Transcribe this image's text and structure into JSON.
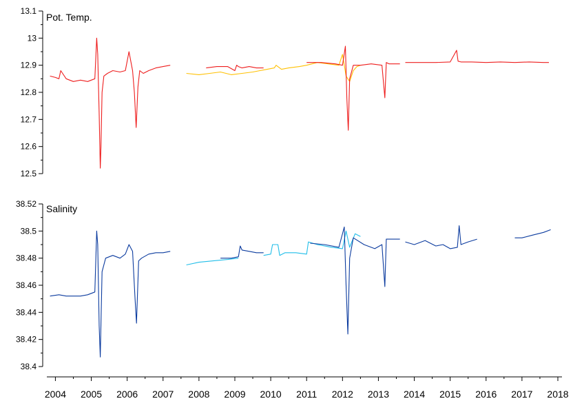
{
  "chart_data": [
    {
      "type": "line",
      "title": "Pot. Temp.",
      "xlabel": "",
      "ylabel": "",
      "xlim": [
        2003.8,
        2018.0
      ],
      "ylim": [
        12.5,
        13.1
      ],
      "yticks": [
        "12.5",
        "12.6",
        "12.7",
        "12.8",
        "12.9",
        "13",
        "13.1"
      ],
      "xticks": [
        "2004",
        "2005",
        "2006",
        "2007",
        "2008",
        "2009",
        "2010",
        "2011",
        "2012",
        "2013",
        "2014",
        "2015",
        "2016",
        "2017",
        "2018"
      ],
      "grid": false,
      "legend": "none",
      "series": [
        {
          "color": "#ee1c1c",
          "x": [
            2003.85,
            2004.0,
            2004.1,
            2004.15,
            2004.3,
            2004.5,
            2004.7,
            2004.9,
            2005.1,
            2005.15,
            2005.18,
            2005.22,
            2005.25,
            2005.27,
            2005.3,
            2005.35,
            2005.45,
            2005.6,
            2005.8,
            2005.95,
            2006.05,
            2006.15,
            2006.2,
            2006.25,
            2006.3,
            2006.35,
            2006.45,
            2006.6,
            2006.8,
            2007.0,
            2007.2
          ],
          "y": [
            12.86,
            12.855,
            12.85,
            12.88,
            12.85,
            12.84,
            12.845,
            12.84,
            12.85,
            13.0,
            12.94,
            12.72,
            12.52,
            12.6,
            12.8,
            12.86,
            12.87,
            12.88,
            12.875,
            12.88,
            12.95,
            12.88,
            12.8,
            12.67,
            12.82,
            12.88,
            12.87,
            12.88,
            12.89,
            12.895,
            12.9
          ]
        },
        {
          "color": "#ee1c1c",
          "x": [
            2008.2,
            2008.5,
            2008.8,
            2009.0,
            2009.05,
            2009.1,
            2009.2,
            2009.4,
            2009.6,
            2009.8
          ],
          "y": [
            12.89,
            12.895,
            12.895,
            12.88,
            12.9,
            12.895,
            12.89,
            12.895,
            12.89,
            12.89
          ]
        },
        {
          "color": "#ffc000",
          "x": [
            2007.65,
            2008.0,
            2008.3,
            2008.6,
            2008.9,
            2009.2,
            2009.5,
            2009.7,
            2009.9,
            2010.1,
            2010.15,
            2010.3,
            2010.5,
            2010.8,
            2011.0,
            2011.3,
            2011.6,
            2011.9,
            2012.0,
            2012.1,
            2012.2,
            2012.3,
            2012.4,
            2012.5
          ],
          "y": [
            12.87,
            12.865,
            12.87,
            12.875,
            12.865,
            12.87,
            12.875,
            12.88,
            12.885,
            12.89,
            12.9,
            12.885,
            12.89,
            12.895,
            12.9,
            12.91,
            12.905,
            12.9,
            12.94,
            12.86,
            12.84,
            12.88,
            12.895,
            12.9
          ]
        },
        {
          "color": "#ee1c1c",
          "x": [
            2011.0,
            2011.4,
            2011.8,
            2012.0,
            2012.08,
            2012.12,
            2012.16,
            2012.2,
            2012.3,
            2012.5,
            2012.8,
            2013.1,
            2013.18,
            2013.22,
            2013.3,
            2013.6
          ],
          "y": [
            12.91,
            12.91,
            12.905,
            12.9,
            12.97,
            12.78,
            12.66,
            12.85,
            12.9,
            12.9,
            12.905,
            12.9,
            12.78,
            12.91,
            12.905,
            12.905
          ]
        },
        {
          "color": "#ee1c1c",
          "x": [
            2013.75,
            2014.2,
            2014.6,
            2015.0,
            2015.18,
            2015.22,
            2015.3,
            2015.6,
            2016.0,
            2016.4,
            2016.8,
            2017.2,
            2017.6,
            2017.75
          ],
          "y": [
            12.91,
            12.91,
            12.91,
            12.912,
            12.955,
            12.915,
            12.912,
            12.912,
            12.91,
            12.912,
            12.91,
            12.912,
            12.91,
            12.91
          ]
        }
      ]
    },
    {
      "type": "line",
      "title": "Salinity",
      "xlabel": "",
      "ylabel": "",
      "xlim": [
        2003.8,
        2018.0
      ],
      "ylim": [
        38.4,
        38.52
      ],
      "yticks": [
        "38.4",
        "38.42",
        "38.44",
        "38.46",
        "38.48",
        "38.5",
        "38.52"
      ],
      "xticks": [
        "2004",
        "2005",
        "2006",
        "2007",
        "2008",
        "2009",
        "2010",
        "2011",
        "2012",
        "2013",
        "2014",
        "2015",
        "2016",
        "2017",
        "2018"
      ],
      "grid": false,
      "legend": "none",
      "series": [
        {
          "color": "#0a3a9e",
          "x": [
            2003.85,
            2004.1,
            2004.3,
            2004.5,
            2004.7,
            2004.9,
            2005.1,
            2005.15,
            2005.18,
            2005.22,
            2005.25,
            2005.3,
            2005.4,
            2005.6,
            2005.8,
            2005.95,
            2006.05,
            2006.15,
            2006.22,
            2006.26,
            2006.32,
            2006.4,
            2006.6,
            2006.8,
            2007.0,
            2007.2
          ],
          "y": [
            38.452,
            38.453,
            38.452,
            38.452,
            38.452,
            38.453,
            38.455,
            38.5,
            38.49,
            38.43,
            38.407,
            38.47,
            38.48,
            38.482,
            38.48,
            38.483,
            38.49,
            38.485,
            38.45,
            38.432,
            38.478,
            38.48,
            38.483,
            38.484,
            38.484,
            38.485
          ]
        },
        {
          "color": "#1fbde8",
          "x": [
            2007.65,
            2008.0,
            2008.4,
            2008.8,
            2009.1
          ],
          "y": [
            38.475,
            38.477,
            38.478,
            38.479,
            38.48
          ]
        },
        {
          "color": "#0a3a9e",
          "x": [
            2008.6,
            2008.9,
            2009.1,
            2009.15,
            2009.2,
            2009.4,
            2009.6,
            2009.8
          ],
          "y": [
            38.48,
            38.48,
            38.481,
            38.489,
            38.486,
            38.485,
            38.484,
            38.484
          ]
        },
        {
          "color": "#1fbde8",
          "x": [
            2009.8,
            2010.0,
            2010.05,
            2010.2,
            2010.25,
            2010.4,
            2010.7,
            2011.0,
            2011.05,
            2011.3,
            2011.7,
            2012.0,
            2012.1,
            2012.2,
            2012.35,
            2012.5
          ],
          "y": [
            38.482,
            38.483,
            38.49,
            38.49,
            38.482,
            38.484,
            38.484,
            38.483,
            38.492,
            38.49,
            38.488,
            38.487,
            38.5,
            38.488,
            38.498,
            38.496
          ]
        },
        {
          "color": "#0a3a9e",
          "x": [
            2011.1,
            2011.5,
            2011.9,
            2012.05,
            2012.1,
            2012.15,
            2012.2,
            2012.3,
            2012.6,
            2012.9,
            2013.1,
            2013.18,
            2013.22,
            2013.3,
            2013.6
          ],
          "y": [
            38.491,
            38.49,
            38.488,
            38.503,
            38.46,
            38.424,
            38.48,
            38.495,
            38.49,
            38.487,
            38.49,
            38.459,
            38.494,
            38.494,
            38.494
          ]
        },
        {
          "color": "#0a3a9e",
          "x": [
            2013.75,
            2014.0,
            2014.3,
            2014.6,
            2014.8,
            2015.0,
            2015.2,
            2015.25,
            2015.3,
            2015.5,
            2015.75
          ],
          "y": [
            38.492,
            38.49,
            38.493,
            38.489,
            38.49,
            38.487,
            38.488,
            38.504,
            38.49,
            38.492,
            38.494
          ]
        },
        {
          "color": "#0a3a9e",
          "x": [
            2016.8,
            2017.0,
            2017.3,
            2017.6,
            2017.8
          ],
          "y": [
            38.495,
            38.495,
            38.497,
            38.499,
            38.501
          ]
        }
      ]
    }
  ]
}
